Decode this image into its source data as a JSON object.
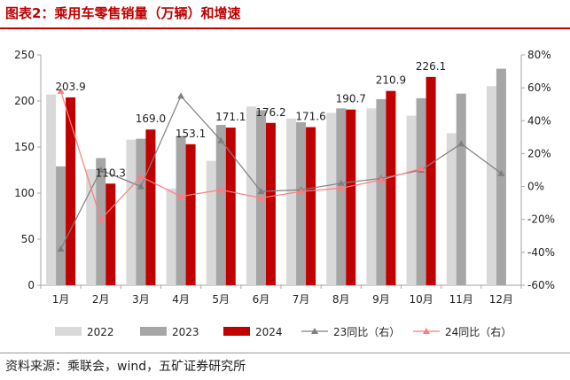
{
  "title": "图表2：乘用车零售销量（万辆）和增速",
  "source": "资料来源：乘联会，wind，五矿证券研究所",
  "chart_data": {
    "type": "bar",
    "categories": [
      "1月",
      "2月",
      "3月",
      "4月",
      "5月",
      "6月",
      "7月",
      "8月",
      "9月",
      "10月",
      "11月",
      "12月"
    ],
    "series": [
      {
        "name": "2022",
        "kind": "bar",
        "axis": "left",
        "color": "#d9d9d9",
        "values": [
          207,
          126,
          158,
          105,
          135,
          194,
          181,
          187,
          192,
          184,
          165,
          216
        ]
      },
      {
        "name": "2023",
        "kind": "bar",
        "axis": "left",
        "color": "#a6a6a6",
        "values": [
          129,
          138,
          159,
          162,
          174,
          190,
          177,
          192,
          202,
          203,
          208,
          235
        ]
      },
      {
        "name": "2024",
        "kind": "bar",
        "axis": "left",
        "color": "#c00000",
        "values": [
          203.9,
          110.3,
          169.0,
          153.1,
          171.1,
          176.2,
          171.6,
          190.7,
          210.9,
          226.1,
          null,
          null
        ],
        "labels": [
          "203.9",
          "110.3",
          "169.0",
          "153.1",
          "171.1",
          "176.2",
          "171.6",
          "190.7",
          "210.9",
          "226.1",
          null,
          null
        ]
      },
      {
        "name": "23同比（右）",
        "kind": "line",
        "axis": "right",
        "color": "#7f7f7f",
        "marker": "triangle",
        "values": [
          -38,
          10,
          0,
          55,
          28,
          -3,
          -2,
          2,
          5,
          10,
          26,
          8
        ]
      },
      {
        "name": "24同比（右）",
        "kind": "line",
        "axis": "right",
        "color": "#ff7c80",
        "marker": "triangle",
        "values": [
          58,
          -20,
          6,
          -6,
          -2,
          -7,
          -3,
          -1,
          4,
          11,
          null,
          null
        ]
      }
    ],
    "y_left": {
      "min": 0,
      "max": 250,
      "step": 50
    },
    "y_right": {
      "min": -60,
      "max": 80,
      "step": 20,
      "format": "percent"
    },
    "legend_position": "bottom",
    "grid": false
  }
}
